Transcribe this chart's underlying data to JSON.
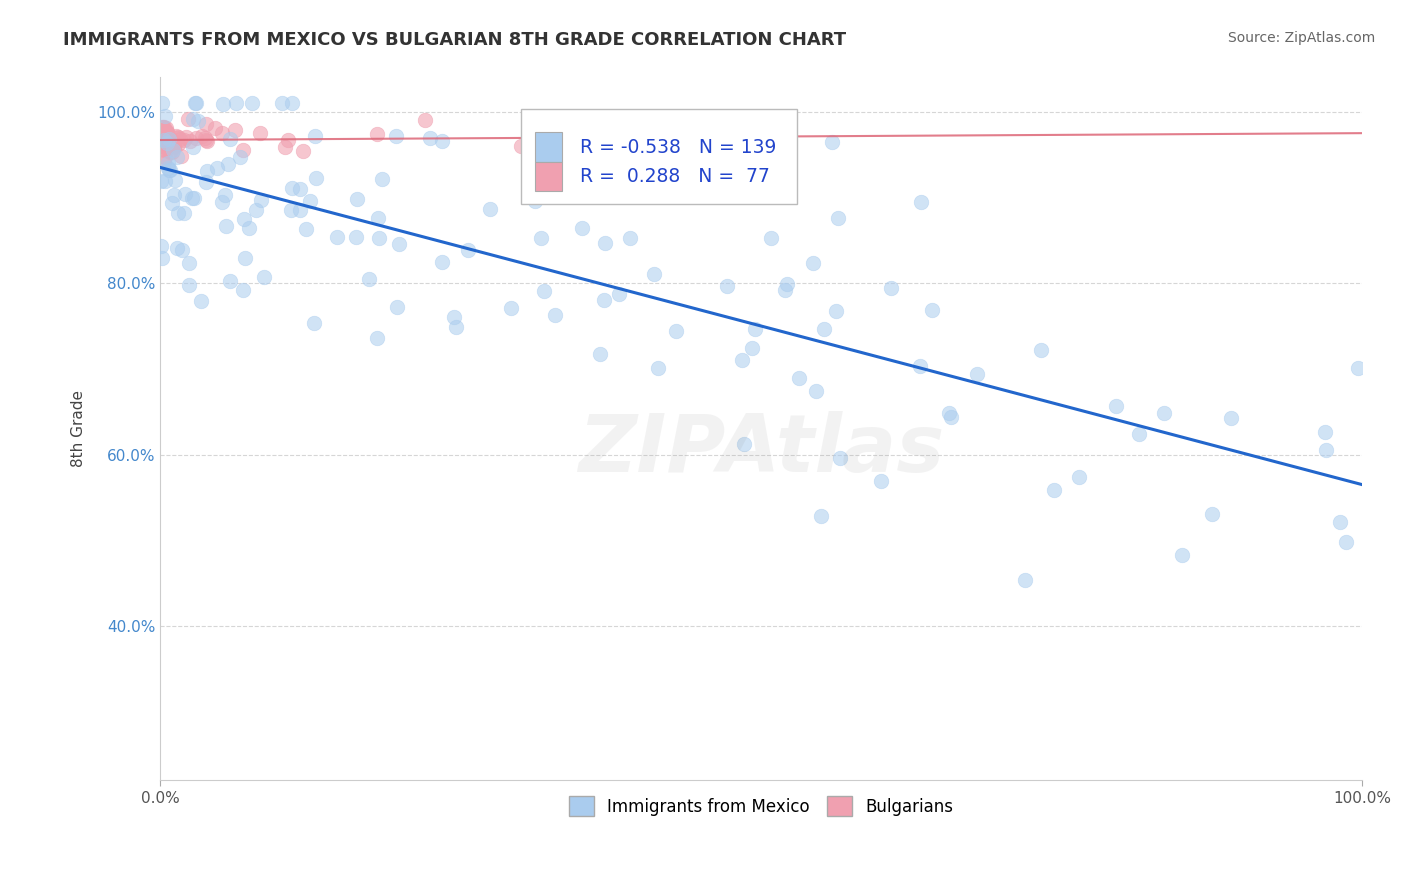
{
  "title": "IMMIGRANTS FROM MEXICO VS BULGARIAN 8TH GRADE CORRELATION CHART",
  "source": "Source: ZipAtlas.com",
  "ylabel": "8th Grade",
  "xlim": [
    0.0,
    1.0
  ],
  "ylim": [
    0.22,
    1.04
  ],
  "ytick_positions": [
    0.4,
    0.6,
    0.8,
    1.0
  ],
  "ytick_labels": [
    "40.0%",
    "60.0%",
    "80.0%",
    "100.0%"
  ],
  "R_blue": -0.538,
  "N_blue": 139,
  "R_pink": 0.288,
  "N_pink": 77,
  "blue_color": "#aaccee",
  "pink_color": "#f0a0b0",
  "blue_line_color": "#2266cc",
  "pink_line_color": "#dd6677",
  "watermark": "ZIPAtlas",
  "legend_labels": [
    "Immigrants from Mexico",
    "Bulgarians"
  ],
  "blue_line_x0": 0.0,
  "blue_line_y0": 0.935,
  "blue_line_x1": 1.0,
  "blue_line_y1": 0.565,
  "pink_line_x0": 0.0,
  "pink_line_y0": 0.967,
  "pink_line_x1": 1.0,
  "pink_line_y1": 0.975
}
